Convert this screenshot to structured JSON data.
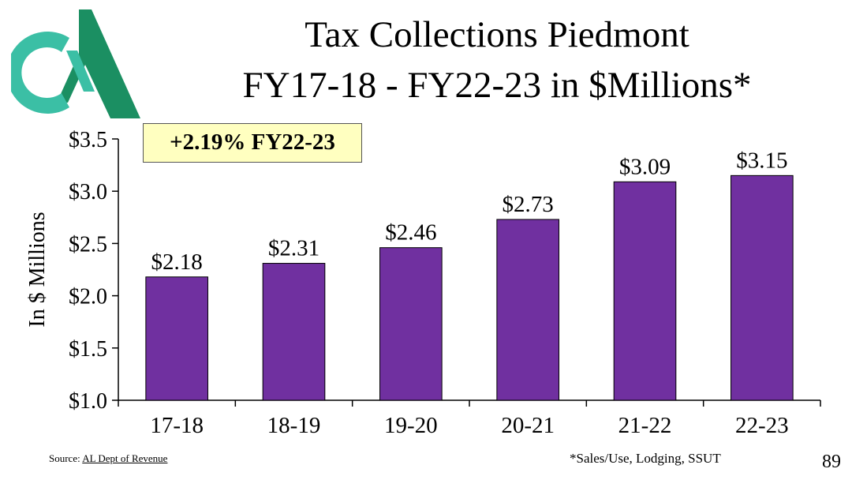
{
  "title": {
    "line1": "Tax Collections Piedmont",
    "line2": "FY17-18 - FY22-23 in $Millions*"
  },
  "logo": {
    "icon": "cm-logo-icon",
    "colors": [
      "#3bbfa5",
      "#1b8f62"
    ]
  },
  "callout": "+2.19% FY22-23",
  "chart_data": {
    "type": "bar",
    "title": "Tax Collections Piedmont FY17-18 - FY22-23 in $Millions*",
    "xlabel": "",
    "ylabel": "In $ Millions",
    "categories": [
      "17-18",
      "18-19",
      "19-20",
      "20-21",
      "21-22",
      "22-23"
    ],
    "values": [
      2.18,
      2.31,
      2.46,
      2.73,
      3.09,
      3.15
    ],
    "data_labels": [
      "$2.18",
      "$2.31",
      "$2.46",
      "$2.73",
      "$3.09",
      "$3.15"
    ],
    "ylim": [
      1.0,
      3.5
    ],
    "yticks": [
      1.0,
      1.5,
      2.0,
      2.5,
      3.0,
      3.5
    ],
    "ytick_labels": [
      "$1.0",
      "$1.5",
      "$2.0",
      "$2.5",
      "$3.0",
      "$3.5"
    ],
    "grid": false,
    "bar_color": "#7030a0"
  },
  "footer": {
    "source_prefix": "Source: ",
    "source_link": "AL Dept of Revenue",
    "footnote": "*Sales/Use, Lodging, SSUT",
    "page_number": "89"
  }
}
